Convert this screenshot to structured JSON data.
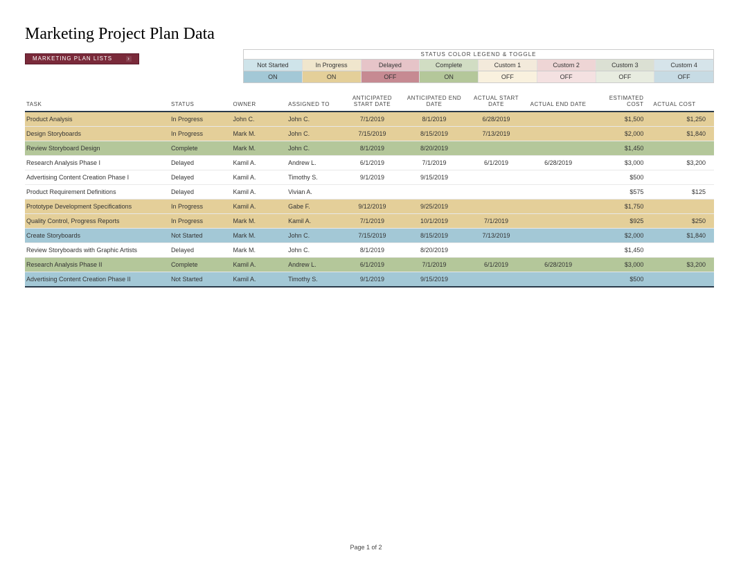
{
  "title": "Marketing Project Plan Data",
  "listsButton": "MARKETING PLAN LISTS",
  "legendTitle": "STATUS COLOR LEGEND & TOGGLE",
  "legend": [
    {
      "label": "Not Started",
      "toggle": "ON",
      "labelBg": "#cfe4ea",
      "toggleBg": "#a3c8d6"
    },
    {
      "label": "In Progress",
      "toggle": "ON",
      "labelBg": "#f0e6cd",
      "toggleBg": "#e4cf99"
    },
    {
      "label": "Delayed",
      "toggle": "OFF",
      "labelBg": "#e6c4c8",
      "toggleBg": "#c68a92"
    },
    {
      "label": "Complete",
      "toggle": "ON",
      "labelBg": "#d1ddc3",
      "toggleBg": "#b4c79a"
    },
    {
      "label": "Custom 1",
      "toggle": "OFF",
      "labelBg": "#f3eadb",
      "toggleBg": "#f9f1de"
    },
    {
      "label": "Custom 2",
      "toggle": "OFF",
      "labelBg": "#eed5d5",
      "toggleBg": "#f4e1e1"
    },
    {
      "label": "Custom 3",
      "toggle": "OFF",
      "labelBg": "#dbe0d3",
      "toggleBg": "#e8ece0"
    },
    {
      "label": "Custom 4",
      "toggle": "OFF",
      "labelBg": "#d6e4ea",
      "toggleBg": "#c7dbe4"
    }
  ],
  "columns": {
    "task": "TASK",
    "status": "STATUS",
    "owner": "OWNER",
    "assigned": "ASSIGNED TO",
    "antStart": "ANTICIPATED START DATE",
    "antEnd": "ANTICIPATED END DATE",
    "actStart": "ACTUAL START DATE",
    "actEnd": "ACTUAL END DATE",
    "estCost": "ESTIMATED COST",
    "actCost": "ACTUAL COST"
  },
  "colWidths": [
    "21%",
    "9%",
    "8%",
    "8%",
    "9%",
    "9%",
    "9%",
    "9%",
    "9%",
    "9%"
  ],
  "statusColors": {
    "In Progress": "#e4cf99",
    "Complete": "#b4c79a",
    "Delayed": "#ffffff",
    "Not Started": "#a3c8d6"
  },
  "rows": [
    {
      "task": "Product Analysis",
      "status": "In Progress",
      "owner": "John C.",
      "assigned": "John C.",
      "antStart": "7/1/2019",
      "antEnd": "8/1/2019",
      "actStart": "6/28/2019",
      "actEnd": "",
      "estCost": "$1,500",
      "actCost": "$1,250"
    },
    {
      "task": "Design Storyboards",
      "status": "In Progress",
      "owner": "Mark M.",
      "assigned": "John C.",
      "antStart": "7/15/2019",
      "antEnd": "8/15/2019",
      "actStart": "7/13/2019",
      "actEnd": "",
      "estCost": "$2,000",
      "actCost": "$1,840"
    },
    {
      "task": "Review Storyboard Design",
      "status": "Complete",
      "owner": "Mark M.",
      "assigned": "John C.",
      "antStart": "8/1/2019",
      "antEnd": "8/20/2019",
      "actStart": "",
      "actEnd": "",
      "estCost": "$1,450",
      "actCost": ""
    },
    {
      "task": "Research Analysis Phase I",
      "status": "Delayed",
      "owner": "Kamil A.",
      "assigned": "Andrew L.",
      "antStart": "6/1/2019",
      "antEnd": "7/1/2019",
      "actStart": "6/1/2019",
      "actEnd": "6/28/2019",
      "estCost": "$3,000",
      "actCost": "$3,200"
    },
    {
      "task": "Advertising Content Creation Phase I",
      "status": "Delayed",
      "owner": "Kamil A.",
      "assigned": "Timothy S.",
      "antStart": "9/1/2019",
      "antEnd": "9/15/2019",
      "actStart": "",
      "actEnd": "",
      "estCost": "$500",
      "actCost": ""
    },
    {
      "task": "Product Requirement Definitions",
      "status": "Delayed",
      "owner": "Kamil A.",
      "assigned": "Vivian A.",
      "antStart": "",
      "antEnd": "",
      "actStart": "",
      "actEnd": "",
      "estCost": "$575",
      "actCost": "$125"
    },
    {
      "task": "Prototype Development Specifications",
      "status": "In Progress",
      "owner": "Kamil A.",
      "assigned": "Gabe F.",
      "antStart": "9/12/2019",
      "antEnd": "9/25/2019",
      "actStart": "",
      "actEnd": "",
      "estCost": "$1,750",
      "actCost": ""
    },
    {
      "task": "Quality Control, Progress Reports",
      "status": "In Progress",
      "owner": "Mark M.",
      "assigned": "Kamil A.",
      "antStart": "7/1/2019",
      "antEnd": "10/1/2019",
      "actStart": "7/1/2019",
      "actEnd": "",
      "estCost": "$925",
      "actCost": "$250"
    },
    {
      "task": "Create Storyboards",
      "status": "Not Started",
      "owner": "Mark M.",
      "assigned": "John C.",
      "antStart": "7/15/2019",
      "antEnd": "8/15/2019",
      "actStart": "7/13/2019",
      "actEnd": "",
      "estCost": "$2,000",
      "actCost": "$1,840"
    },
    {
      "task": "Review Storyboards with Graphic Artists",
      "status": "Delayed",
      "owner": "Mark M.",
      "assigned": "John C.",
      "antStart": "8/1/2019",
      "antEnd": "8/20/2019",
      "actStart": "",
      "actEnd": "",
      "estCost": "$1,450",
      "actCost": ""
    },
    {
      "task": "Research Analysis Phase II",
      "status": "Complete",
      "owner": "Kamil A.",
      "assigned": "Andrew L.",
      "antStart": "6/1/2019",
      "antEnd": "7/1/2019",
      "actStart": "6/1/2019",
      "actEnd": "6/28/2019",
      "estCost": "$3,000",
      "actCost": "$3,200"
    },
    {
      "task": "Advertising Content Creation Phase II",
      "status": "Not Started",
      "owner": "Kamil A.",
      "assigned": "Timothy S.",
      "antStart": "9/1/2019",
      "antEnd": "9/15/2019",
      "actStart": "",
      "actEnd": "",
      "estCost": "$500",
      "actCost": ""
    }
  ],
  "footer": "Page 1 of 2"
}
